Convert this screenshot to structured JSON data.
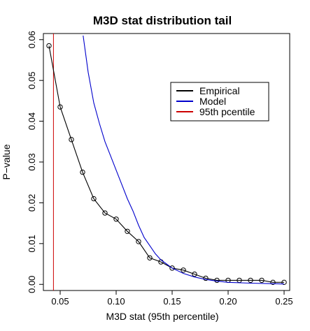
{
  "chart_data": {
    "type": "line",
    "title": "M3D stat distribution tail",
    "xlabel": "M3D stat (95th percentile)",
    "ylabel": "P−value",
    "xlim": [
      0.035,
      0.255
    ],
    "ylim": [
      -0.0015,
      0.0615
    ],
    "x_ticks": [
      {
        "value": 0.05,
        "label": "0.05"
      },
      {
        "value": 0.1,
        "label": "0.10"
      },
      {
        "value": 0.15,
        "label": "0.15"
      },
      {
        "value": 0.2,
        "label": "0.20"
      },
      {
        "value": 0.25,
        "label": "0.25"
      }
    ],
    "y_ticks": [
      {
        "value": 0.0,
        "label": "0.00"
      },
      {
        "value": 0.01,
        "label": "0.01"
      },
      {
        "value": 0.02,
        "label": "0.02"
      },
      {
        "value": 0.03,
        "label": "0.03"
      },
      {
        "value": 0.04,
        "label": "0.04"
      },
      {
        "value": 0.05,
        "label": "0.05"
      },
      {
        "value": 0.06,
        "label": "0.06"
      }
    ],
    "grid": false,
    "legend_position": "right",
    "series": [
      {
        "name": "Empirical",
        "color": "#000000",
        "markers": "open-circle",
        "x": [
          0.04,
          0.05,
          0.06,
          0.07,
          0.08,
          0.09,
          0.1,
          0.11,
          0.12,
          0.13,
          0.14,
          0.15,
          0.16,
          0.17,
          0.18,
          0.19,
          0.2,
          0.21,
          0.22,
          0.23,
          0.24,
          0.25
        ],
        "y": [
          0.0585,
          0.0435,
          0.0355,
          0.0275,
          0.021,
          0.0175,
          0.016,
          0.013,
          0.0105,
          0.0065,
          0.0055,
          0.004,
          0.0035,
          0.0025,
          0.0015,
          0.001,
          0.001,
          0.001,
          0.001,
          0.001,
          0.0005,
          0.0005
        ]
      },
      {
        "name": "Model",
        "color": "#0000cc",
        "markers": "none",
        "x": [
          0.0705,
          0.075,
          0.08,
          0.085,
          0.09,
          0.095,
          0.1,
          0.105,
          0.11,
          0.115,
          0.12,
          0.125,
          0.13,
          0.135,
          0.14,
          0.145,
          0.15,
          0.16,
          0.17,
          0.18,
          0.19,
          0.2,
          0.22,
          0.25
        ],
        "y": [
          0.061,
          0.052,
          0.0445,
          0.0395,
          0.035,
          0.0315,
          0.028,
          0.0245,
          0.021,
          0.018,
          0.0145,
          0.0115,
          0.0095,
          0.0075,
          0.006,
          0.005,
          0.004,
          0.0027,
          0.0018,
          0.0012,
          0.0008,
          0.0005,
          0.0003,
          0.0001
        ]
      }
    ],
    "vlines": [
      {
        "name": "95th pcentile",
        "x": 0.044,
        "color": "#cc0000"
      }
    ],
    "legend": [
      {
        "label": "Empirical",
        "color": "#000000"
      },
      {
        "label": "Model",
        "color": "#0000cc"
      },
      {
        "label": "95th pcentile",
        "color": "#cc0000"
      }
    ]
  }
}
